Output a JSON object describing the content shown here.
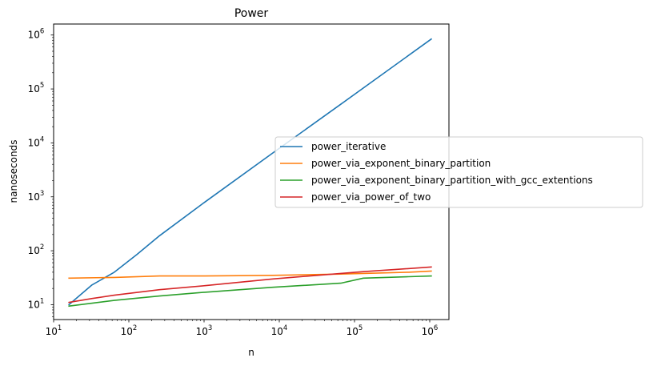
{
  "chart_data": {
    "type": "line",
    "title": "Power",
    "xlabel": "n",
    "ylabel": "nanoseconds",
    "xscale": "log",
    "yscale": "log",
    "xlim": [
      10,
      1800000
    ],
    "ylim": [
      5.3,
      1600000
    ],
    "x_ticks": [
      {
        "base": "10",
        "exp": "1",
        "value": 10
      },
      {
        "base": "10",
        "exp": "2",
        "value": 100
      },
      {
        "base": "10",
        "exp": "3",
        "value": 1000
      },
      {
        "base": "10",
        "exp": "4",
        "value": 10000
      },
      {
        "base": "10",
        "exp": "5",
        "value": 100000
      },
      {
        "base": "10",
        "exp": "6",
        "value": 1000000
      }
    ],
    "y_ticks": [
      {
        "base": "10",
        "exp": "1",
        "value": 10
      },
      {
        "base": "10",
        "exp": "2",
        "value": 100
      },
      {
        "base": "10",
        "exp": "3",
        "value": 1000
      },
      {
        "base": "10",
        "exp": "4",
        "value": 10000
      },
      {
        "base": "10",
        "exp": "5",
        "value": 100000
      },
      {
        "base": "10",
        "exp": "6",
        "value": 1000000
      }
    ],
    "grid": false,
    "legend_position": "center-right",
    "series": [
      {
        "name": "power_iterative",
        "color": "#1f77b4",
        "points": [
          [
            16,
            10
          ],
          [
            32,
            23
          ],
          [
            64,
            40
          ],
          [
            128,
            85
          ],
          [
            256,
            190
          ],
          [
            1024,
            800
          ],
          [
            8192,
            6500
          ],
          [
            65536,
            52000
          ],
          [
            1048576,
            840000
          ]
        ]
      },
      {
        "name": "power_via_exponent_binary_partition",
        "color": "#ff7f0e",
        "points": [
          [
            16,
            31
          ],
          [
            64,
            32
          ],
          [
            256,
            34
          ],
          [
            1024,
            34
          ],
          [
            8192,
            35
          ],
          [
            65536,
            37
          ],
          [
            131072,
            38
          ],
          [
            524288,
            40
          ],
          [
            1048576,
            42
          ]
        ]
      },
      {
        "name": "power_via_exponent_binary_partition_with_gcc_extentions",
        "color": "#2ca02c",
        "points": [
          [
            16,
            9.4
          ],
          [
            64,
            12
          ],
          [
            256,
            14.5
          ],
          [
            1024,
            17
          ],
          [
            8192,
            21
          ],
          [
            65536,
            25
          ],
          [
            131072,
            31
          ],
          [
            524288,
            33
          ],
          [
            1048576,
            34
          ]
        ]
      },
      {
        "name": "power_via_power_of_two",
        "color": "#d62728",
        "points": [
          [
            16,
            11
          ],
          [
            32,
            13
          ],
          [
            64,
            15
          ],
          [
            256,
            19
          ],
          [
            1024,
            22.5
          ],
          [
            8192,
            30
          ],
          [
            65536,
            38
          ],
          [
            131072,
            41
          ],
          [
            1048576,
            50
          ]
        ]
      }
    ]
  }
}
